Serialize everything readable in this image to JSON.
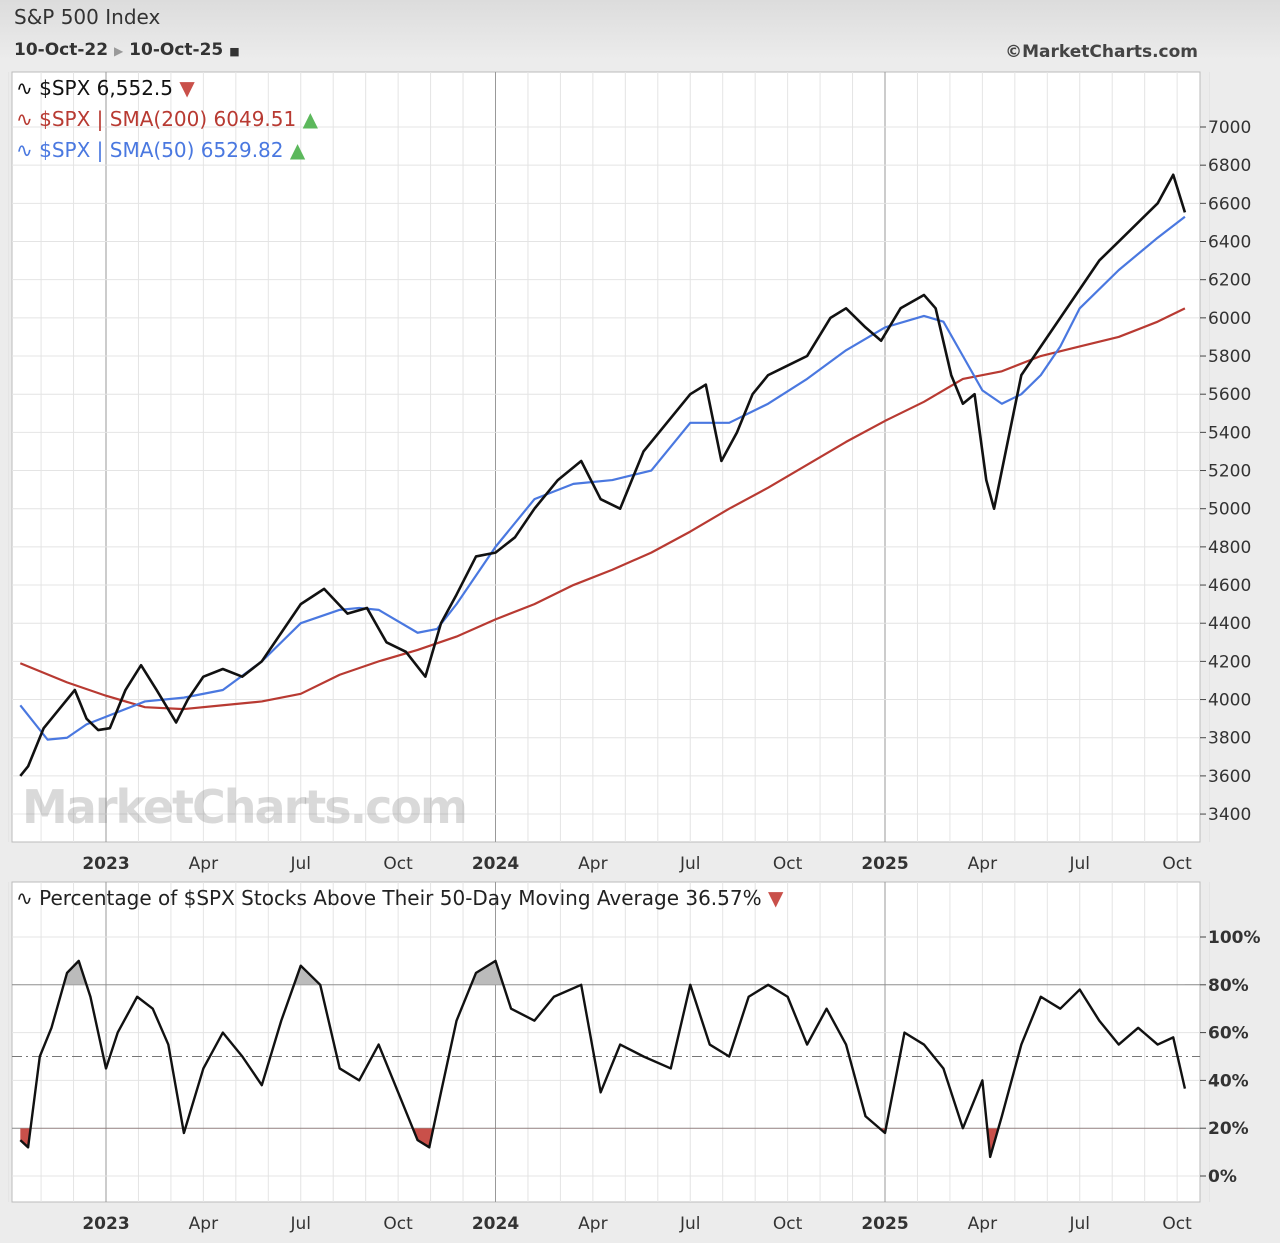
{
  "header": {
    "title": "S&P 500 Index",
    "range_start": "10-Oct-22",
    "range_end": "10-Oct-25",
    "copyright": "©MarketCharts.com",
    "watermark": "MarketCharts.com"
  },
  "colors": {
    "price": "#111111",
    "sma200": "#b83a32",
    "sma50": "#4a78e0",
    "up": "#5cb85c",
    "down": "#c9504a"
  },
  "chart_data": [
    {
      "type": "line",
      "title": "S&P 500 Index",
      "legend": [
        {
          "label": "$SPX 6,552.5",
          "arrow": "down"
        },
        {
          "label": "$SPX | SMA(200) 6049.51",
          "arrow": "up"
        },
        {
          "label": "$SPX | SMA(50) 6529.82",
          "arrow": "up"
        }
      ],
      "ylim": [
        3300,
        7200
      ],
      "yticks": [
        3400,
        3600,
        3800,
        4000,
        4200,
        4400,
        4600,
        4800,
        5000,
        5200,
        5400,
        5600,
        5800,
        6000,
        6200,
        6400,
        6600,
        6800,
        7000
      ],
      "xticks": [
        {
          "t": 2023,
          "label": "2023",
          "major": true
        },
        {
          "t": 2023.25,
          "label": "Apr"
        },
        {
          "t": 2023.5,
          "label": "Jul"
        },
        {
          "t": 2023.75,
          "label": "Oct"
        },
        {
          "t": 2024,
          "label": "2024",
          "major": true
        },
        {
          "t": 2024.25,
          "label": "Apr"
        },
        {
          "t": 2024.5,
          "label": "Jul"
        },
        {
          "t": 2024.75,
          "label": "Oct"
        },
        {
          "t": 2025,
          "label": "2025",
          "major": true
        },
        {
          "t": 2025.25,
          "label": "Apr"
        },
        {
          "t": 2025.5,
          "label": "Jul"
        },
        {
          "t": 2025.75,
          "label": "Oct"
        }
      ],
      "series": [
        {
          "name": "$SPX",
          "x": [
            2022.78,
            2022.8,
            2022.84,
            2022.88,
            2022.92,
            2022.95,
            2022.98,
            2023.01,
            2023.05,
            2023.09,
            2023.13,
            2023.18,
            2023.21,
            2023.25,
            2023.3,
            2023.35,
            2023.4,
            2023.45,
            2023.5,
            2023.56,
            2023.62,
            2023.67,
            2023.72,
            2023.77,
            2023.82,
            2023.86,
            2023.9,
            2023.95,
            2024.0,
            2024.05,
            2024.1,
            2024.16,
            2024.22,
            2024.27,
            2024.32,
            2024.38,
            2024.44,
            2024.5,
            2024.54,
            2024.58,
            2024.62,
            2024.66,
            2024.7,
            2024.75,
            2024.8,
            2024.86,
            2024.9,
            2024.95,
            2024.99,
            2025.04,
            2025.1,
            2025.13,
            2025.17,
            2025.2,
            2025.23,
            2025.26,
            2025.28,
            2025.31,
            2025.35,
            2025.4,
            2025.45,
            2025.5,
            2025.55,
            2025.6,
            2025.65,
            2025.7,
            2025.74,
            2025.77
          ],
          "values": [
            3600,
            3650,
            3850,
            3950,
            4050,
            3900,
            3840,
            3850,
            4050,
            4180,
            4050,
            3880,
            4000,
            4120,
            4160,
            4120,
            4200,
            4350,
            4500,
            4580,
            4450,
            4480,
            4300,
            4250,
            4120,
            4400,
            4550,
            4750,
            4770,
            4850,
            5000,
            5150,
            5250,
            5050,
            5000,
            5300,
            5450,
            5600,
            5650,
            5250,
            5400,
            5600,
            5700,
            5750,
            5800,
            6000,
            6050,
            5950,
            5880,
            6050,
            6120,
            6050,
            5700,
            5550,
            5600,
            5150,
            5000,
            5300,
            5700,
            5850,
            6000,
            6150,
            6300,
            6400,
            6500,
            6600,
            6750,
            6552.5
          ]
        },
        {
          "name": "SMA(200)",
          "x": [
            2022.78,
            2022.9,
            2023.0,
            2023.1,
            2023.2,
            2023.3,
            2023.4,
            2023.5,
            2023.6,
            2023.7,
            2023.8,
            2023.9,
            2024.0,
            2024.1,
            2024.2,
            2024.3,
            2024.4,
            2024.5,
            2024.6,
            2024.7,
            2024.8,
            2024.9,
            2025.0,
            2025.1,
            2025.2,
            2025.3,
            2025.4,
            2025.5,
            2025.6,
            2025.7,
            2025.77
          ],
          "values": [
            4190,
            4090,
            4020,
            3960,
            3950,
            3970,
            3990,
            4030,
            4130,
            4200,
            4260,
            4330,
            4420,
            4500,
            4600,
            4680,
            4770,
            4880,
            5000,
            5110,
            5230,
            5350,
            5460,
            5560,
            5680,
            5720,
            5800,
            5850,
            5900,
            5980,
            6049.51
          ]
        },
        {
          "name": "SMA(50)",
          "x": [
            2022.78,
            2022.85,
            2022.9,
            2022.95,
            2023.0,
            2023.1,
            2023.2,
            2023.3,
            2023.4,
            2023.5,
            2023.6,
            2023.65,
            2023.7,
            2023.8,
            2023.85,
            2023.9,
            2024.0,
            2024.1,
            2024.2,
            2024.3,
            2024.4,
            2024.5,
            2024.6,
            2024.7,
            2024.8,
            2024.9,
            2025.0,
            2025.1,
            2025.15,
            2025.2,
            2025.25,
            2025.3,
            2025.35,
            2025.4,
            2025.45,
            2025.5,
            2025.6,
            2025.7,
            2025.77
          ],
          "values": [
            3970,
            3790,
            3800,
            3870,
            3910,
            3990,
            4010,
            4050,
            4200,
            4400,
            4470,
            4480,
            4470,
            4350,
            4370,
            4500,
            4800,
            5050,
            5130,
            5150,
            5200,
            5450,
            5450,
            5550,
            5680,
            5830,
            5950,
            6010,
            5980,
            5800,
            5620,
            5550,
            5600,
            5700,
            5850,
            6050,
            6250,
            6420,
            6529.82
          ]
        }
      ]
    },
    {
      "type": "area",
      "title": "Percentage of $SPX Stocks Above Their 50-Day Moving Average 36.57%",
      "arrow": "down",
      "ylim": [
        -10,
        115
      ],
      "yticks": [
        {
          "v": 0,
          "label": "0%"
        },
        {
          "v": 20,
          "label": "20%"
        },
        {
          "v": 40,
          "label": "40%"
        },
        {
          "v": 60,
          "label": "60%"
        },
        {
          "v": 80,
          "label": "80%"
        },
        {
          "v": 100,
          "label": "100%"
        }
      ],
      "upper_threshold": 80,
      "lower_threshold": 20,
      "midline": 50,
      "series": [
        {
          "name": "% above 50-DMA",
          "x": [
            2022.78,
            2022.8,
            2022.83,
            2022.86,
            2022.9,
            2022.93,
            2022.96,
            2023.0,
            2023.03,
            2023.08,
            2023.12,
            2023.16,
            2023.2,
            2023.25,
            2023.3,
            2023.35,
            2023.4,
            2023.45,
            2023.5,
            2023.55,
            2023.6,
            2023.65,
            2023.7,
            2023.75,
            2023.8,
            2023.83,
            2023.86,
            2023.9,
            2023.95,
            2024.0,
            2024.04,
            2024.1,
            2024.15,
            2024.22,
            2024.27,
            2024.32,
            2024.38,
            2024.45,
            2024.5,
            2024.55,
            2024.6,
            2024.65,
            2024.7,
            2024.75,
            2024.8,
            2024.85,
            2024.9,
            2024.95,
            2025.0,
            2025.05,
            2025.1,
            2025.15,
            2025.2,
            2025.25,
            2025.27,
            2025.3,
            2025.35,
            2025.4,
            2025.45,
            2025.5,
            2025.55,
            2025.6,
            2025.65,
            2025.7,
            2025.74,
            2025.77
          ],
          "values": [
            15,
            12,
            50,
            62,
            85,
            90,
            75,
            45,
            60,
            75,
            70,
            55,
            18,
            45,
            60,
            50,
            38,
            65,
            88,
            80,
            45,
            40,
            55,
            35,
            15,
            12,
            35,
            65,
            85,
            90,
            70,
            65,
            75,
            80,
            35,
            55,
            50,
            45,
            80,
            55,
            50,
            75,
            80,
            75,
            55,
            70,
            55,
            25,
            18,
            60,
            55,
            45,
            20,
            40,
            8,
            25,
            55,
            75,
            70,
            78,
            65,
            55,
            62,
            55,
            58,
            36.57
          ]
        }
      ]
    }
  ]
}
